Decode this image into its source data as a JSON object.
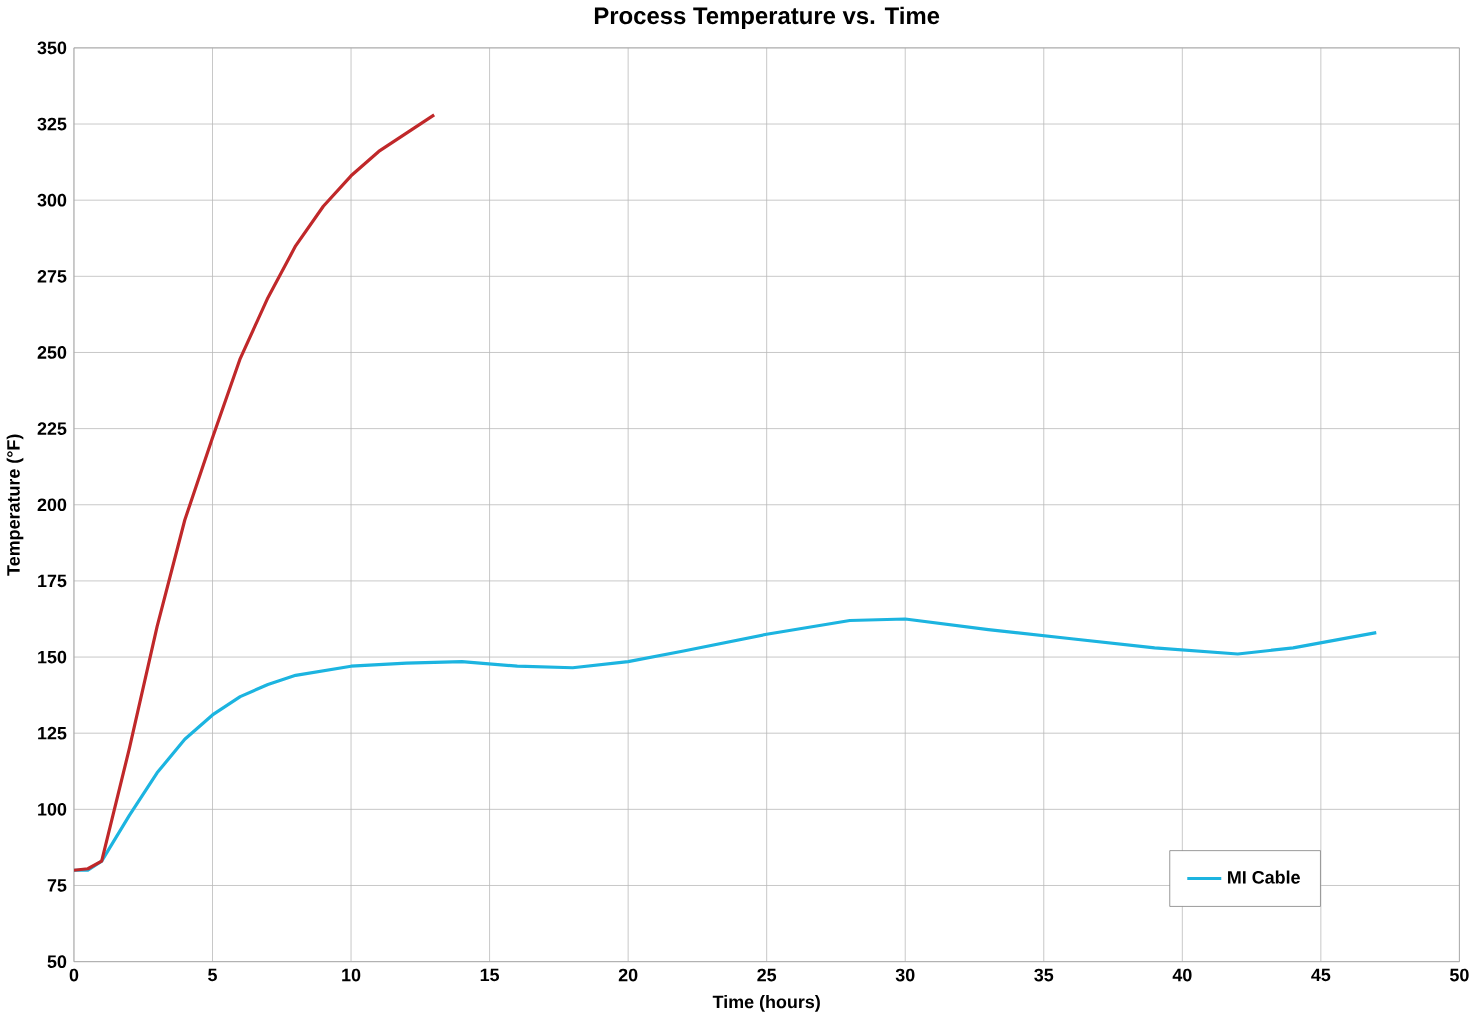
{
  "chart_data": {
    "type": "line",
    "title": "Process Temperature vs. Time",
    "xlabel": "Time (hours)",
    "ylabel": "Temperature (°F)",
    "xlim": [
      0,
      50
    ],
    "xticks": [
      0,
      5,
      10,
      15,
      20,
      25,
      30,
      35,
      40,
      45,
      50
    ],
    "ylim": [
      50,
      350
    ],
    "yticks": [
      50,
      75,
      100,
      125,
      150,
      175,
      200,
      225,
      250,
      275,
      300,
      325,
      350
    ],
    "grid": true,
    "legend": "bottom right",
    "line_style": "solid",
    "marker": "none",
    "series": [
      {
        "name": "MI Cable",
        "color": "#1cb4e0",
        "x": [
          0,
          0.5,
          1,
          2,
          3,
          4,
          5,
          6,
          7,
          8,
          10,
          12,
          14,
          16,
          18,
          20,
          22,
          25,
          28,
          30,
          33,
          36,
          39,
          42,
          44,
          47
        ],
        "values": [
          80,
          80,
          83,
          98,
          112,
          123,
          131,
          137,
          141,
          144,
          147,
          148,
          148.5,
          147,
          146.5,
          148.5,
          152,
          157.5,
          162,
          162.5,
          159,
          156,
          153,
          151,
          153,
          158
        ]
      },
      {
        "color": "#c0282a",
        "x": [
          0,
          0.5,
          1,
          2,
          3,
          4,
          5,
          6,
          7,
          8,
          9,
          10,
          11,
          12,
          13
        ],
        "values": [
          80,
          80.5,
          83,
          120,
          160,
          195,
          222,
          248,
          268,
          285,
          298,
          308,
          316,
          322,
          328
        ]
      }
    ]
  }
}
